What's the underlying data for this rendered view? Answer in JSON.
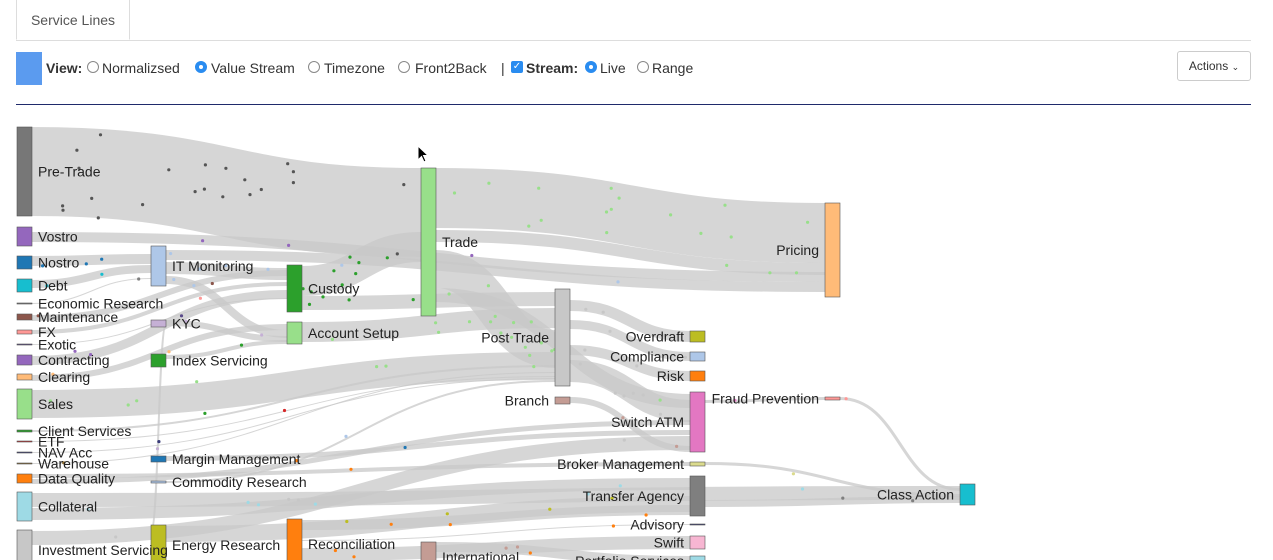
{
  "tabs": [
    {
      "label": "Service Lines"
    }
  ],
  "toolbar": {
    "swatch_color": "#5b9bef",
    "view_label": "View:",
    "view_options": [
      {
        "label": "Normalizsed",
        "selected": false
      },
      {
        "label": "Value Stream",
        "selected": true
      },
      {
        "label": "Timezone",
        "selected": false
      },
      {
        "label": "Front2Back",
        "selected": false
      }
    ],
    "separator": "|",
    "stream_label": "Stream:",
    "stream_checked": true,
    "stream_options": [
      {
        "label": "Live",
        "selected": true
      },
      {
        "label": "Range",
        "selected": false
      }
    ],
    "actions_label": "Actions",
    "actions_icon": "chevron-down-icon"
  },
  "sankey": {
    "link_color": "#c8c8c8",
    "nodes": {
      "pretrade": {
        "label": "Pre-Trade",
        "color": "#777777"
      },
      "vostro": {
        "label": "Vostro",
        "color": "#9467bd"
      },
      "nostro": {
        "label": "Nostro",
        "color": "#1f77b4"
      },
      "debt": {
        "label": "Debt",
        "color": "#17becf"
      },
      "economic": {
        "label": "Economic Research",
        "color": "#7f7f7f"
      },
      "maintenance": {
        "label": "Maintenance",
        "color": "#8c564b"
      },
      "fx": {
        "label": "FX",
        "color": "#ff9896"
      },
      "exotic": {
        "label": "Exotic",
        "color": "#5a4a8a"
      },
      "contracting": {
        "label": "Contracting",
        "color": "#9467bd"
      },
      "clearing": {
        "label": "Clearing",
        "color": "#ffbb78"
      },
      "sales": {
        "label": "Sales",
        "color": "#98df8a"
      },
      "client": {
        "label": "Client Services",
        "color": "#2ca02c"
      },
      "etf": {
        "label": "ETF",
        "color": "#d62728"
      },
      "navacc": {
        "label": "NAV Acc",
        "color": "#393b79"
      },
      "warehouse": {
        "label": "Warehouse",
        "color": "#8c6d31"
      },
      "dataquality": {
        "label": "Data Quality",
        "color": "#ff7f0e"
      },
      "collateral": {
        "label": "Collateral",
        "color": "#9edae5"
      },
      "investment": {
        "label": "Investment Servicing",
        "color": "#c7c7c7"
      },
      "itmon": {
        "label": "IT Monitoring",
        "color": "#aec7e8"
      },
      "kyc": {
        "label": "KYC",
        "color": "#c5b0d5"
      },
      "index": {
        "label": "Index Servicing",
        "color": "#2ca02c"
      },
      "margin": {
        "label": "Margin Management",
        "color": "#1f77b4"
      },
      "commodity": {
        "label": "Commodity Research",
        "color": "#aec7e8"
      },
      "energy": {
        "label": "Energy Research",
        "color": "#bcbd22"
      },
      "custody": {
        "label": "Custody",
        "color": "#2ca02c"
      },
      "accountsetup": {
        "label": "Account Setup",
        "color": "#98df8a"
      },
      "reconciliation": {
        "label": "Reconciliation",
        "color": "#ff7f0e"
      },
      "trade": {
        "label": "Trade",
        "color": "#98df8a"
      },
      "international": {
        "label": "International",
        "color": "#c49c94"
      },
      "posttrade": {
        "label": "Post Trade",
        "color": "#c7c7c7"
      },
      "branch": {
        "label": "Branch",
        "color": "#c49c94"
      },
      "overdraft": {
        "label": "Overdraft",
        "color": "#bcbd22"
      },
      "compliance": {
        "label": "Compliance",
        "color": "#aec7e8"
      },
      "risk": {
        "label": "Risk",
        "color": "#ff7f0e"
      },
      "switchatm": {
        "label": "Switch ATM",
        "color": "#e377c2"
      },
      "broker": {
        "label": "Broker Management",
        "color": "#dbdb8d"
      },
      "transfer": {
        "label": "Transfer Agency",
        "color": "#7f7f7f"
      },
      "advisory": {
        "label": "Advisory",
        "color": "#393b79"
      },
      "swift": {
        "label": "Swift",
        "color": "#f7b6d2"
      },
      "portfolio": {
        "label": "Portfolio Services",
        "color": "#9edae5"
      },
      "pricing": {
        "label": "Pricing",
        "color": "#ffbb78"
      },
      "fraud": {
        "label": "Fraud Prevention",
        "color": "#ff9896"
      },
      "classaction": {
        "label": "Class Action",
        "color": "#17becf"
      }
    }
  }
}
